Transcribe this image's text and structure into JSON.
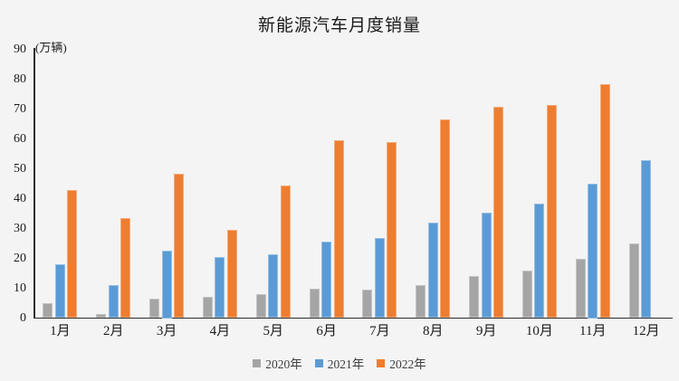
{
  "colors": {
    "background": "#f4f4f4",
    "axis_line": "#2e2e2e",
    "text": "#1a1a1a",
    "series_gray": "#a5a5a5",
    "series_blue": "#5b9bd5",
    "series_orange": "#ed7d31"
  },
  "chart_data": {
    "type": "bar",
    "title": "新能源汽车月度销量",
    "ylabel": "(万辆)",
    "xlabel": "",
    "categories": [
      "1月",
      "2月",
      "3月",
      "4月",
      "5月",
      "6月",
      "7月",
      "8月",
      "9月",
      "10月",
      "11月",
      "12月"
    ],
    "series": [
      {
        "name": "2020年",
        "color": "#a5a5a5",
        "values": [
          5,
          1.5,
          6.5,
          7,
          8,
          10,
          9.5,
          11,
          14,
          16,
          20,
          25
        ]
      },
      {
        "name": "2021年",
        "color": "#5b9bd5",
        "values": [
          18,
          11,
          22.5,
          20.5,
          21.5,
          25.5,
          27,
          32,
          35.5,
          38.5,
          45,
          53
        ]
      },
      {
        "name": "2022年",
        "color": "#ed7d31",
        "values": [
          43,
          33.5,
          48.5,
          29.5,
          44.5,
          59.5,
          59,
          66.5,
          71,
          71.5,
          78.5,
          null
        ]
      }
    ],
    "ylim": [
      0,
      90
    ],
    "ytick_interval": 10,
    "grid": false,
    "legend_position": "bottom"
  }
}
